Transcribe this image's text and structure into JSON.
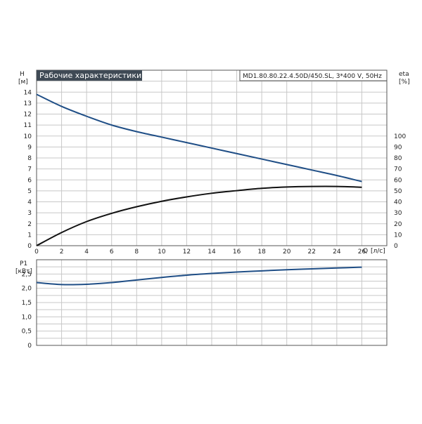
{
  "header": {
    "title": "Рабочие характеристики",
    "model": "MD1.80.80.22.4.50D/450.SL, 3*400 V, 50Hz"
  },
  "colors": {
    "head_curve": "#1f4e86",
    "eta_curve": "#111111",
    "power_curve": "#1f4e86"
  },
  "chart_data": [
    {
      "type": "line",
      "name": "upper-chart",
      "title": "Рабочие характеристики",
      "x_label": "Q [л/с]",
      "x_label_name": "Q",
      "x_label_unit": "[л/с]",
      "y_left_label": "H",
      "y_left_unit": "[м]",
      "y_right_label": "eta",
      "y_right_unit": "[%]",
      "xlim": [
        0,
        28
      ],
      "ylim_left": [
        0,
        16
      ],
      "ylim_right": [
        0,
        160
      ],
      "x_ticks": [
        0,
        2,
        4,
        6,
        8,
        10,
        12,
        14,
        16,
        18,
        20,
        22,
        24,
        26
      ],
      "x_tick_labels": [
        "0",
        "2",
        "4",
        "6",
        "8",
        "10",
        "12",
        "14",
        "16",
        "18",
        "20",
        "22",
        "24",
        "26"
      ],
      "y_left_ticks": [
        0,
        1,
        2,
        3,
        4,
        5,
        6,
        7,
        8,
        9,
        10,
        11,
        12,
        13,
        14
      ],
      "y_left_tick_labels": [
        "0",
        "1",
        "2",
        "3",
        "4",
        "5",
        "6",
        "7",
        "8",
        "9",
        "10",
        "11",
        "12",
        "13",
        "14"
      ],
      "y_right_ticks": [
        0,
        10,
        20,
        30,
        40,
        50,
        60,
        70,
        80,
        90,
        100
      ],
      "y_right_tick_labels": [
        "0",
        "10",
        "20",
        "30",
        "40",
        "50",
        "60",
        "70",
        "80",
        "90",
        "100"
      ],
      "grid": true,
      "series": [
        {
          "axis": "left",
          "color": "#1f4e86",
          "x": [
            0,
            2,
            4,
            6,
            8,
            10,
            12,
            14,
            16,
            18,
            20,
            22,
            24,
            26
          ],
          "y": [
            13.8,
            12.7,
            11.8,
            11.0,
            10.4,
            9.9,
            9.4,
            8.9,
            8.4,
            7.9,
            7.4,
            6.9,
            6.4,
            5.85
          ]
        },
        {
          "axis": "right",
          "color": "#111111",
          "x": [
            0,
            2,
            4,
            6,
            8,
            10,
            12,
            14,
            16,
            18,
            20,
            22,
            24,
            26
          ],
          "y": [
            0,
            12,
            22,
            29.5,
            35.5,
            40.5,
            44.5,
            47.8,
            50.2,
            52.3,
            53.5,
            54,
            54,
            53.3
          ]
        }
      ]
    },
    {
      "type": "line",
      "name": "lower-chart",
      "y_label": "P1",
      "y_unit": "[кВт]",
      "xlim": [
        0,
        28
      ],
      "ylim": [
        0,
        3.0
      ],
      "y_ticks": [
        0,
        0.5,
        1.0,
        1.5,
        2.0,
        2.5
      ],
      "y_tick_labels": [
        "0",
        "0,5",
        "1,0",
        "1,5",
        "2,0",
        "2,5"
      ],
      "grid": true,
      "series": [
        {
          "color": "#1f4e86",
          "x": [
            0,
            2,
            4,
            6,
            8,
            10,
            12,
            14,
            16,
            18,
            20,
            22,
            24,
            26
          ],
          "y": [
            2.2,
            2.13,
            2.14,
            2.2,
            2.29,
            2.38,
            2.46,
            2.52,
            2.57,
            2.61,
            2.65,
            2.68,
            2.71,
            2.74
          ]
        }
      ]
    }
  ]
}
